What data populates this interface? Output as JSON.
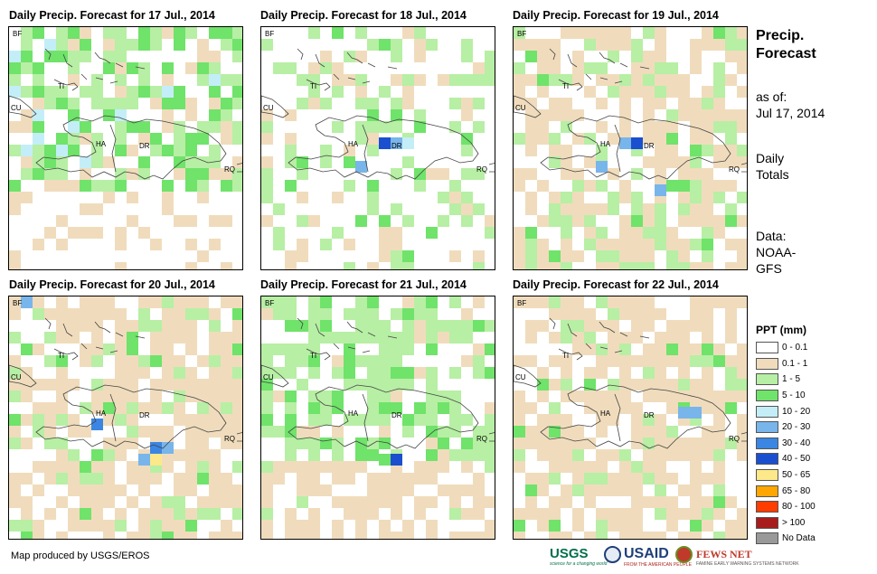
{
  "panels": [
    {
      "title": "Daily Precip. Forecast for 17 Jul., 2014",
      "seed": 17
    },
    {
      "title": "Daily Precip. Forecast for 18 Jul., 2014",
      "seed": 18
    },
    {
      "title": "Daily Precip. Forecast for 19 Jul., 2014",
      "seed": 19
    },
    {
      "title": "Daily Precip. Forecast for 20 Jul., 2014",
      "seed": 20
    },
    {
      "title": "Daily Precip. Forecast for 21 Jul., 2014",
      "seed": 21
    },
    {
      "title": "Daily Precip. Forecast for 22 Jul., 2014",
      "seed": 22
    }
  ],
  "map_labels": {
    "bf": "BF",
    "cu": "CU",
    "ti": "TI",
    "ha": "HA",
    "dr": "DR",
    "rq": "RQ"
  },
  "side": {
    "title_line1": "Precip.",
    "title_line2": "Forecast",
    "asof_label": "as of:",
    "asof_date": "Jul 17, 2014",
    "totals_line1": "Daily",
    "totals_line2": "Totals",
    "data_line1": "Data:",
    "data_line2": "NOAA-",
    "data_line3": "GFS"
  },
  "legend": {
    "title": "PPT (mm)",
    "items": [
      {
        "label": "0 - 0.1",
        "color": "#ffffff"
      },
      {
        "label": "0.1 - 1",
        "color": "#f0dcbc"
      },
      {
        "label": "1 - 5",
        "color": "#b7efa4"
      },
      {
        "label": "5 - 10",
        "color": "#6fe36a"
      },
      {
        "label": "10 - 20",
        "color": "#c3eef8"
      },
      {
        "label": "20 - 30",
        "color": "#78b5ea"
      },
      {
        "label": "30 - 40",
        "color": "#3b86e3"
      },
      {
        "label": "40 - 50",
        "color": "#1a4fcf"
      },
      {
        "label": "50 - 65",
        "color": "#fde88a"
      },
      {
        "label": "65 - 80",
        "color": "#ffa600"
      },
      {
        "label": "80 - 100",
        "color": "#ff3d00"
      },
      {
        "label": "> 100",
        "color": "#a81c1c"
      },
      {
        "label": "No Data",
        "color": "#999999"
      }
    ]
  },
  "credit": "Map produced by USGS/EROS",
  "logos": {
    "usgs": "USGS",
    "usgs_tag": "science for a changing world",
    "usaid": "USAID",
    "usaid_tag": "FROM THE AMERICAN PEOPLE",
    "fews": "FEWS NET",
    "fews_tag": "FAMINE EARLY WARNING SYSTEMS NETWORK"
  }
}
